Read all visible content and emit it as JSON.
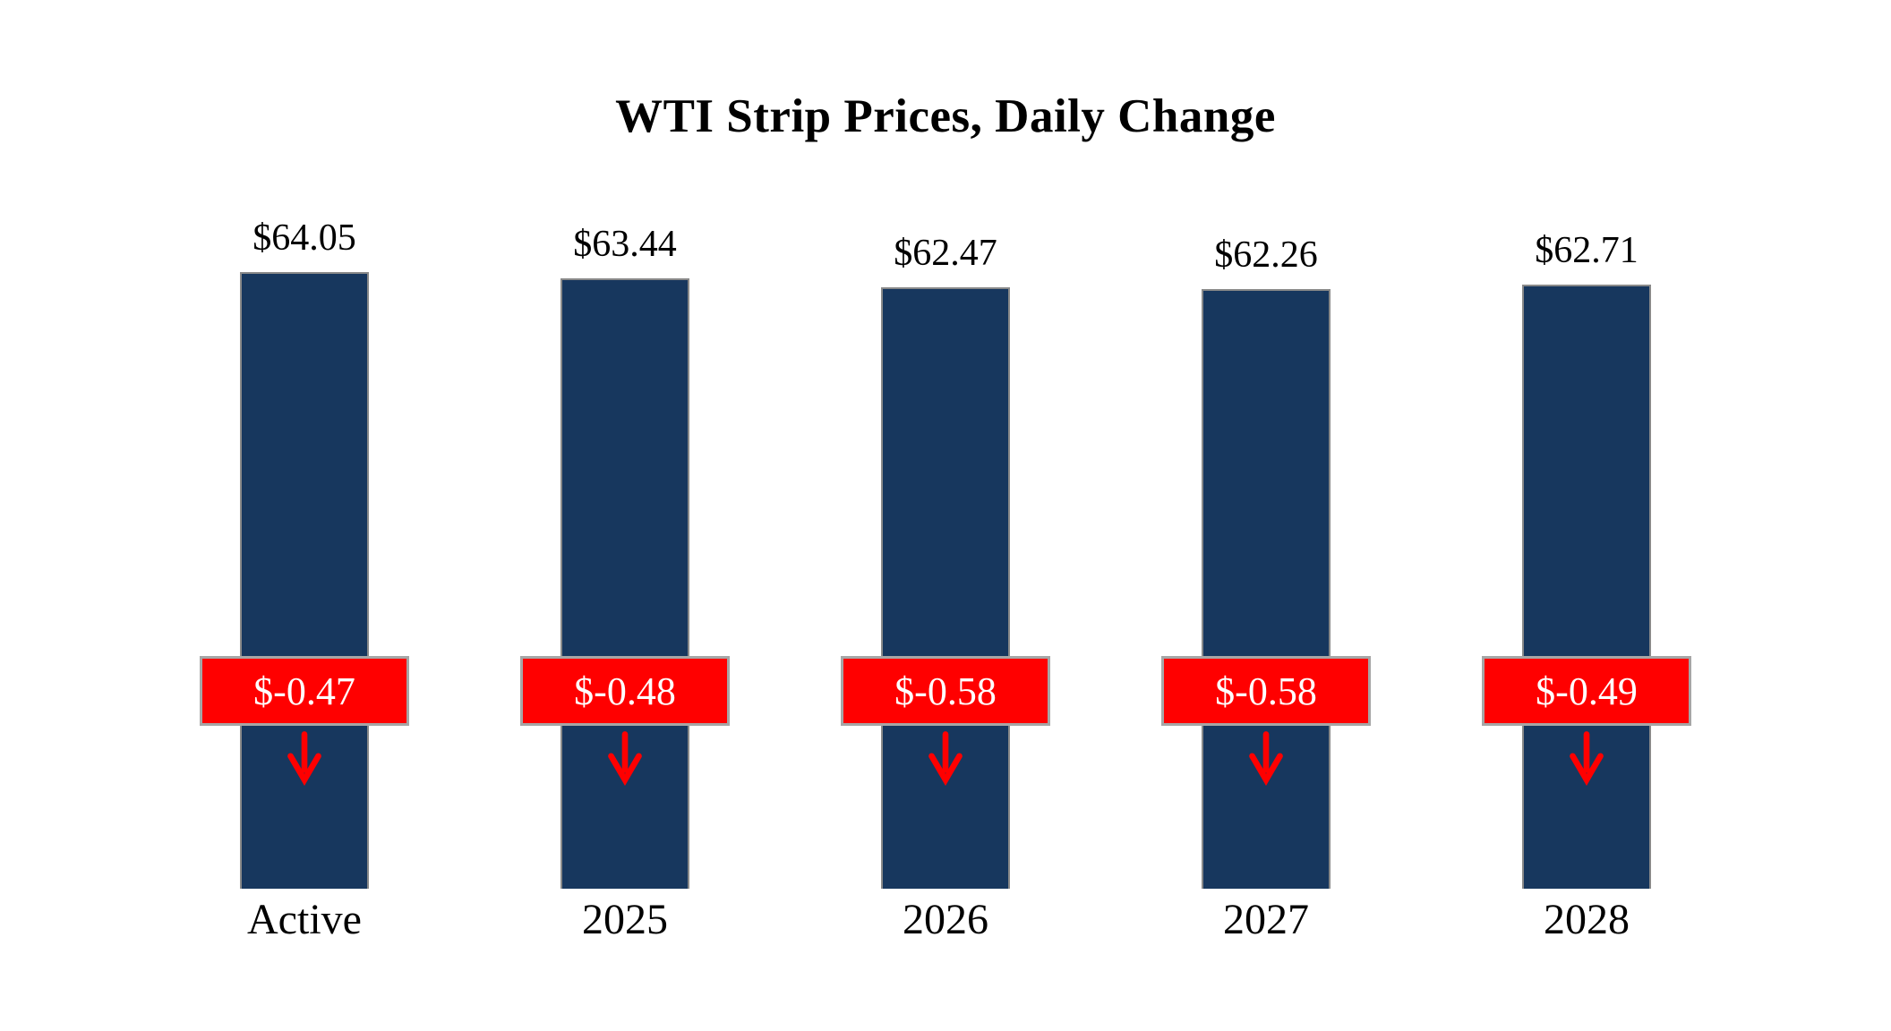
{
  "chart_data": {
    "type": "bar",
    "title": "WTI Strip Prices, Daily Change",
    "categories": [
      "Active",
      "2025",
      "2026",
      "2027",
      "2028"
    ],
    "values": [
      64.05,
      63.44,
      62.47,
      62.26,
      62.71
    ],
    "value_labels": [
      "$64.05",
      "$63.44",
      "$62.47",
      "$62.26",
      "$62.71"
    ],
    "daily_changes": [
      -0.47,
      -0.48,
      -0.58,
      -0.58,
      -0.49
    ],
    "change_labels": [
      "$-0.47",
      "$-0.48",
      "$-0.58",
      "$-0.58",
      "$-0.49"
    ],
    "ylim": [
      0,
      64.05
    ],
    "xlabel": "",
    "ylabel": "",
    "grid": false,
    "legend_position": "none",
    "bar_color": "#17375e",
    "bar_border_color": "#898989",
    "change_badge_color": "#ff0000",
    "change_badge_border_color": "#a6a6a6",
    "change_text_color": "#ffffff",
    "arrow_color": "#ff0000",
    "text_color": "#000000"
  }
}
